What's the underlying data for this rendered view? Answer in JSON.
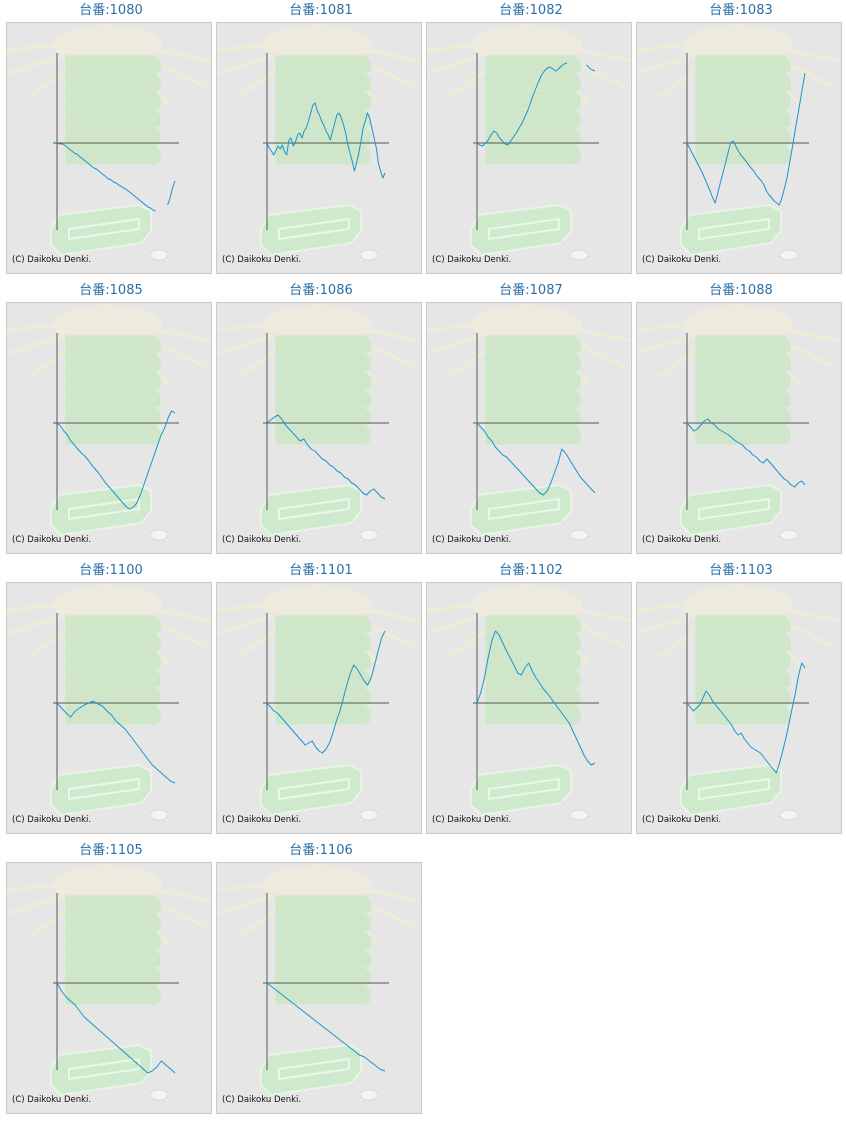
{
  "copyright": "(C) Daikoku Denki.",
  "colors": {
    "line": "#1f94c9",
    "axis": "#555555",
    "background": "#e6e6e6",
    "accent": "#2a6fa8"
  },
  "chart_data": [
    {
      "type": "line",
      "title": "台番:1080",
      "y": [
        0,
        -1,
        -0.8,
        -2,
        -4,
        -6,
        -8,
        -10,
        -11,
        -13,
        -15,
        -17,
        -19,
        -21,
        -23,
        -25,
        -26,
        -28,
        -30,
        -32,
        -34,
        -36,
        -37,
        -39,
        -40,
        -42,
        -43,
        -45,
        -46,
        -48,
        -50,
        -52,
        -54,
        -56,
        -58,
        -60,
        -62,
        -64,
        -65,
        -67,
        -68,
        null,
        null,
        null,
        null,
        -62,
        -55,
        -45,
        -38
      ]
    },
    {
      "type": "line",
      "title": "台番:1081",
      "y": [
        0,
        -5,
        -8,
        -12,
        -8,
        -3,
        -6,
        -2,
        -9,
        -12,
        3,
        5,
        -3,
        1,
        8,
        10,
        5,
        12,
        15,
        22,
        30,
        38,
        40,
        32,
        28,
        22,
        18,
        12,
        8,
        3,
        12,
        20,
        28,
        30,
        25,
        18,
        10,
        -2,
        -10,
        -18,
        -28,
        -20,
        -10,
        2,
        15,
        22,
        30,
        25,
        15,
        5,
        -5,
        -20,
        -28,
        -35,
        -30
      ]
    },
    {
      "type": "line",
      "title": "台番:1082",
      "y": [
        0,
        -2,
        -3,
        0,
        3,
        8,
        12,
        10,
        5,
        2,
        -1,
        -2,
        2,
        6,
        10,
        15,
        20,
        26,
        32,
        40,
        48,
        55,
        62,
        68,
        72,
        75,
        76,
        74,
        72,
        74,
        77,
        79,
        80,
        null,
        null,
        null,
        null,
        null,
        null,
        78,
        75,
        73,
        72
      ]
    },
    {
      "type": "line",
      "title": "台番:1083",
      "y": [
        0,
        -5,
        -10,
        -15,
        -20,
        -25,
        -30,
        -36,
        -42,
        -48,
        -55,
        -60,
        -50,
        -40,
        -30,
        -20,
        -10,
        0,
        2,
        -3,
        -8,
        -12,
        -15,
        -18,
        -22,
        -25,
        -28,
        -32,
        -35,
        -38,
        -42,
        -48,
        -52,
        -55,
        -58,
        -60,
        -62,
        -55,
        -45,
        -35,
        -20,
        -5,
        10,
        25,
        40,
        55,
        70
      ]
    },
    {
      "type": "line",
      "title": "台番:1085",
      "y": [
        0,
        -3,
        -8,
        -12,
        -18,
        -22,
        -26,
        -30,
        -33,
        -37,
        -42,
        -46,
        -50,
        -55,
        -60,
        -64,
        -68,
        -72,
        -76,
        -80,
        -84,
        -86,
        -84,
        -80,
        -72,
        -62,
        -52,
        -42,
        -32,
        -22,
        -12,
        -5,
        5,
        12,
        10
      ]
    },
    {
      "type": "line",
      "title": "台番:1086",
      "y": [
        0,
        3,
        6,
        8,
        4,
        -2,
        -6,
        -10,
        -14,
        -18,
        -16,
        -22,
        -26,
        -28,
        -32,
        -36,
        -38,
        -42,
        -44,
        -48,
        -50,
        -54,
        -56,
        -60,
        -62,
        -66,
        -70,
        -72,
        -68,
        -66,
        -70,
        -74,
        -76
      ]
    },
    {
      "type": "line",
      "title": "台番:1087",
      "y": [
        0,
        -4,
        -8,
        -14,
        -18,
        -24,
        -28,
        -32,
        -34,
        -38,
        -42,
        -46,
        -50,
        -54,
        -58,
        -62,
        -66,
        -70,
        -72,
        -68,
        -60,
        -50,
        -40,
        -26,
        -30,
        -36,
        -42,
        -48,
        -54,
        -58,
        -62,
        -66,
        -70
      ]
    },
    {
      "type": "line",
      "title": "台番:1088",
      "y": [
        0,
        -4,
        -8,
        -6,
        -2,
        2,
        4,
        0,
        -2,
        -6,
        -8,
        -10,
        -12,
        -15,
        -18,
        -20,
        -22,
        -26,
        -28,
        -32,
        -34,
        -38,
        -40,
        -36,
        -40,
        -44,
        -48,
        -52,
        -56,
        -58,
        -62,
        -64,
        -60,
        -58,
        -62
      ]
    },
    {
      "type": "line",
      "title": "台番:1100",
      "y": [
        0,
        -5,
        -10,
        -14,
        -8,
        -5,
        -2,
        0,
        2,
        -1,
        -3,
        -8,
        -12,
        -18,
        -22,
        -26,
        -32,
        -38,
        -44,
        -50,
        -56,
        -62,
        -66,
        -70,
        -74,
        -78,
        -80
      ]
    },
    {
      "type": "line",
      "title": "台番:1101",
      "y": [
        0,
        -4,
        -8,
        -10,
        -14,
        -18,
        -22,
        -26,
        -30,
        -34,
        -38,
        -42,
        -40,
        -38,
        -44,
        -48,
        -50,
        -46,
        -40,
        -30,
        -18,
        -8,
        5,
        18,
        30,
        38,
        34,
        28,
        22,
        18,
        25,
        38,
        52,
        65,
        72
      ]
    },
    {
      "type": "line",
      "title": "台番:1102",
      "y": [
        0,
        10,
        25,
        45,
        62,
        72,
        68,
        60,
        52,
        45,
        38,
        30,
        28,
        35,
        40,
        32,
        25,
        20,
        14,
        10,
        5,
        0,
        -5,
        -10,
        -15,
        -20,
        -28,
        -36,
        -44,
        -52,
        -58,
        -62,
        -60
      ]
    },
    {
      "type": "line",
      "title": "台番:1103",
      "y": [
        0,
        -4,
        -8,
        -5,
        -2,
        5,
        12,
        8,
        2,
        -2,
        -6,
        -10,
        -14,
        -18,
        -22,
        -28,
        -32,
        -30,
        -36,
        -40,
        -44,
        -46,
        -48,
        -50,
        -54,
        -58,
        -62,
        -66,
        -70,
        -60,
        -48,
        -35,
        -20,
        -5,
        10,
        28,
        40,
        35
      ]
    },
    {
      "type": "line",
      "title": "台番:1105",
      "y": [
        0,
        -8,
        -14,
        -18,
        -22,
        -28,
        -34,
        -38,
        -42,
        -46,
        -50,
        -54,
        -58,
        -62,
        -66,
        -70,
        -74,
        -78,
        -82,
        -86,
        -90,
        -88,
        -84,
        -78,
        -82,
        -86,
        -90
      ]
    },
    {
      "type": "line",
      "title": "台番:1106",
      "y": [
        0,
        -4,
        -8,
        -12,
        -16,
        -20,
        -24,
        -28,
        -32,
        -36,
        -40,
        -44,
        -48,
        -52,
        -56,
        -60,
        -64,
        -68,
        -72,
        -74,
        -78,
        -82,
        -86,
        -88
      ]
    }
  ]
}
